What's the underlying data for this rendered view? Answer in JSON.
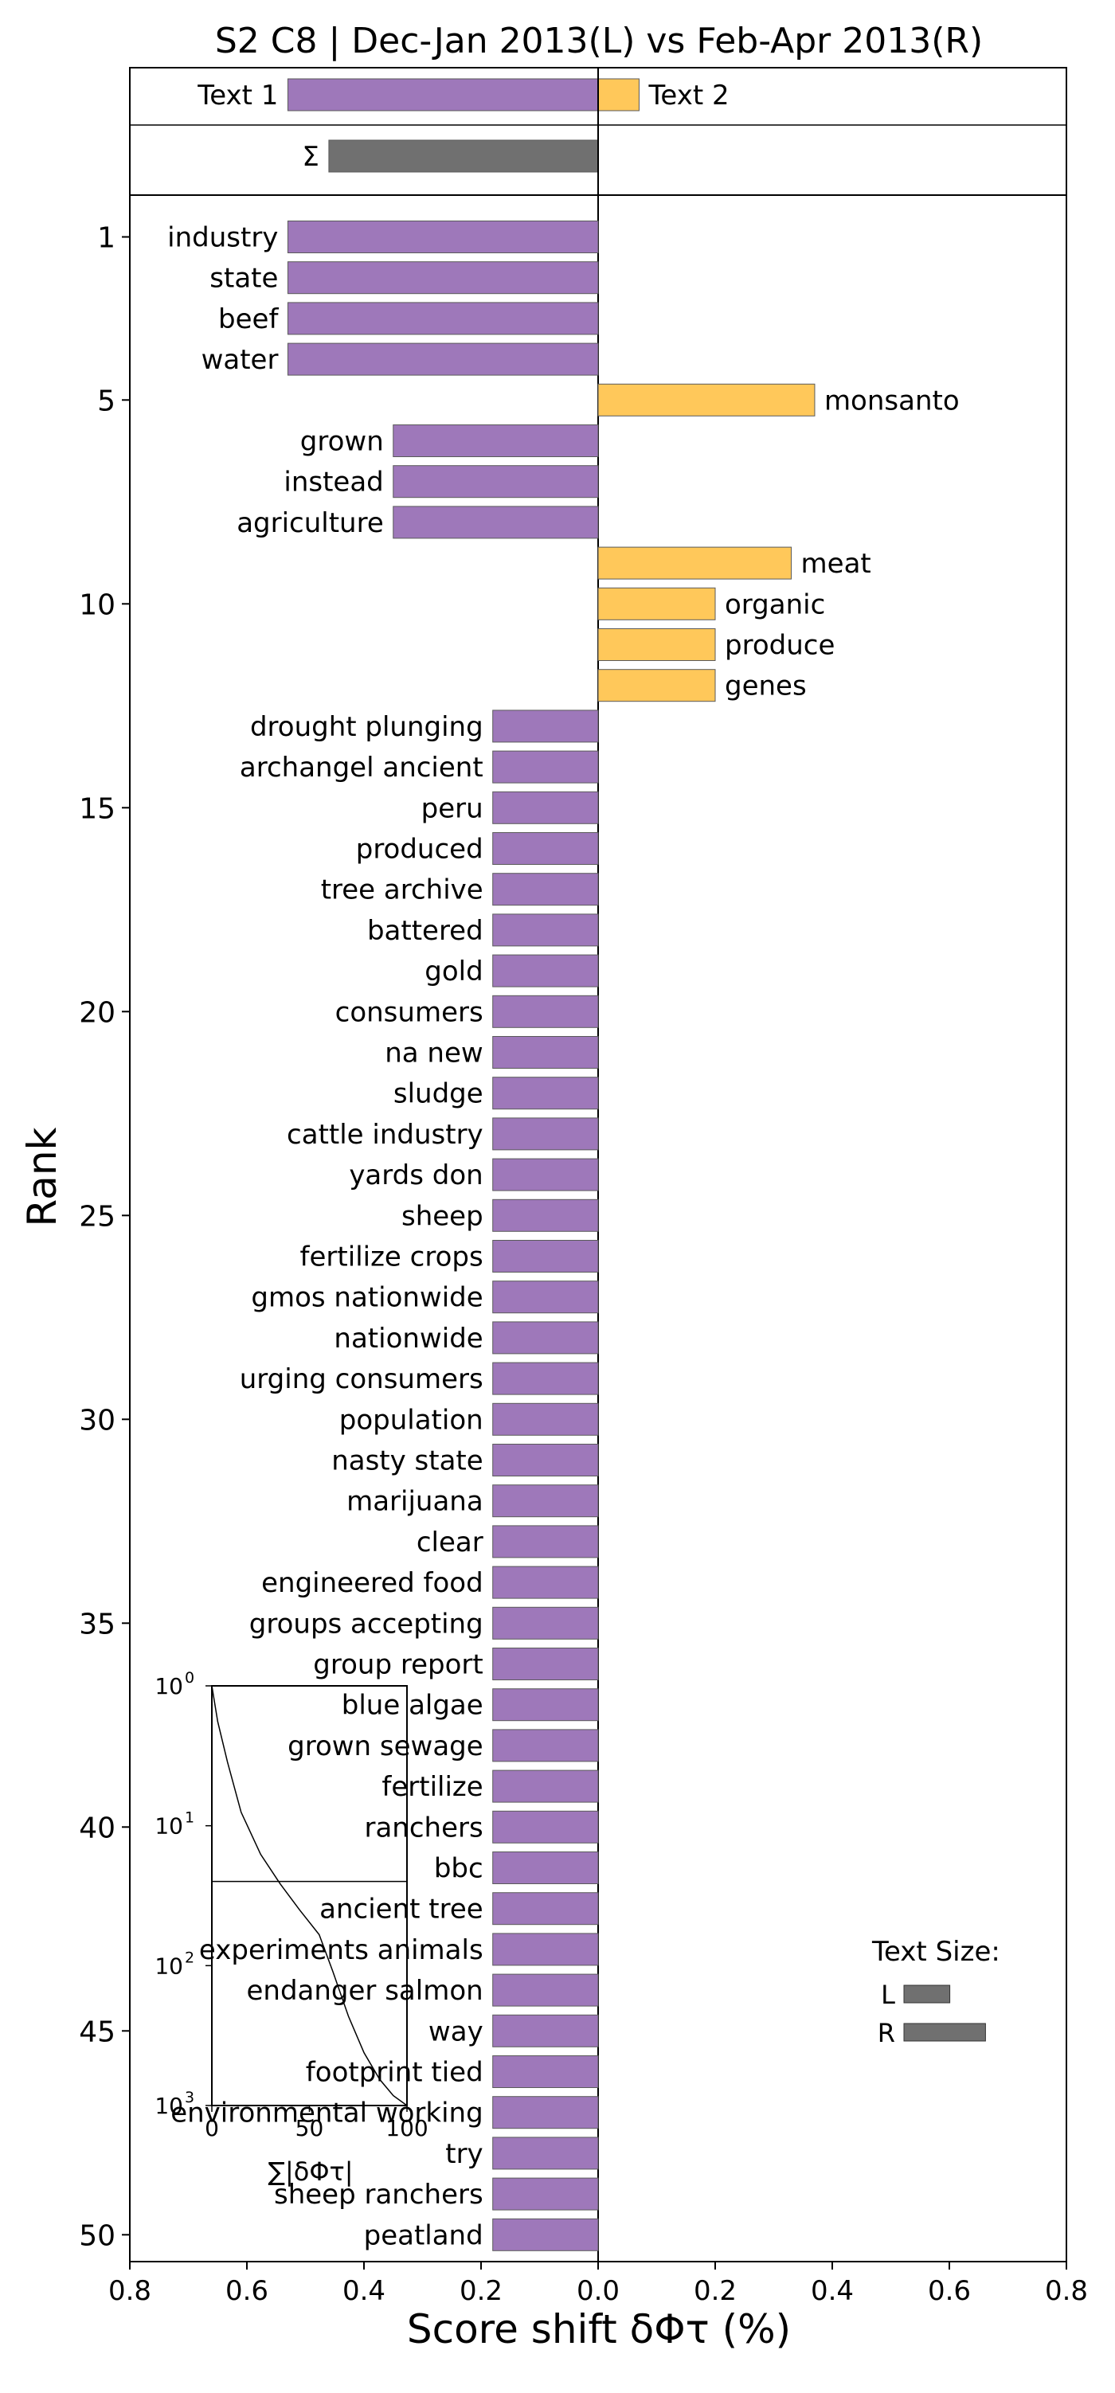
{
  "chart_data": {
    "type": "bar",
    "orientation": "horizontal",
    "title": "S2 C8 | Dec-Jan 2013(L) vs Feb-Apr 2013(R)",
    "xlabel": "Score shift δΦτ (%)",
    "ylabel": "Rank",
    "xlim": [
      -0.8,
      0.8
    ],
    "x_ticks": [
      "0.8",
      "0.6",
      "0.4",
      "0.2",
      "0.0",
      "0.2",
      "0.4",
      "0.6",
      "0.8"
    ],
    "y_ticks": [
      "1",
      "5",
      "10",
      "15",
      "20",
      "25",
      "30",
      "35",
      "40",
      "45",
      "50"
    ],
    "colors": {
      "left": "#9E78BA",
      "right": "#FFC85A",
      "sum": "#707070",
      "size": "#707070"
    },
    "summary": [
      {
        "label": "Text 1",
        "value": -0.53
      },
      {
        "label": "Text 2",
        "value": 0.07
      },
      {
        "label": "Σ",
        "value": -0.46
      }
    ],
    "words": [
      "industry",
      "state",
      "beef",
      "water",
      "monsanto",
      "grown",
      "instead",
      "agriculture",
      "meat",
      "organic",
      "produce",
      "genes",
      "drought plunging",
      "archangel ancient",
      "peru",
      "produced",
      "tree archive",
      "battered",
      "gold",
      "consumers",
      "na new",
      "sludge",
      "cattle industry",
      "yards don",
      "sheep",
      "fertilize crops",
      "gmos nationwide",
      "nationwide",
      "urging consumers",
      "population",
      "nasty state",
      "marijuana",
      "clear",
      "engineered food",
      "groups accepting",
      "group report",
      "blue algae",
      "grown sewage",
      "fertilize",
      "ranchers",
      "bbc",
      "ancient tree",
      "experiments animals",
      "endanger salmon",
      "way",
      "footprint tied",
      "environmental working",
      "try",
      "sheep ranchers",
      "peatland"
    ],
    "values": [
      -0.53,
      -0.53,
      -0.53,
      -0.53,
      0.37,
      -0.35,
      -0.35,
      -0.35,
      0.33,
      0.2,
      0.2,
      0.2,
      -0.18,
      -0.18,
      -0.18,
      -0.18,
      -0.18,
      -0.18,
      -0.18,
      -0.18,
      -0.18,
      -0.18,
      -0.18,
      -0.18,
      -0.18,
      -0.18,
      -0.18,
      -0.18,
      -0.18,
      -0.18,
      -0.18,
      -0.18,
      -0.18,
      -0.18,
      -0.18,
      -0.18,
      -0.18,
      -0.18,
      -0.18,
      -0.18,
      -0.18,
      -0.18,
      -0.18,
      -0.18,
      -0.18,
      -0.18,
      -0.18,
      -0.18,
      -0.18,
      -0.18
    ],
    "inset": {
      "xlabel": "∑|δΦτ|",
      "x_ticks": [
        "0",
        "50",
        "100"
      ],
      "y_ticks": [
        "10",
        "10",
        "10",
        "10"
      ],
      "y_tick_exponents": [
        "0",
        "1",
        "2",
        "3"
      ],
      "y_scale": "log",
      "curve": [
        [
          0,
          1
        ],
        [
          3,
          1.8
        ],
        [
          8,
          3.5
        ],
        [
          15,
          8
        ],
        [
          25,
          16
        ],
        [
          35,
          26
        ],
        [
          45,
          40
        ],
        [
          55,
          60
        ],
        [
          62,
          110
        ],
        [
          70,
          230
        ],
        [
          78,
          420
        ],
        [
          86,
          650
        ],
        [
          93,
          850
        ],
        [
          100,
          1000
        ]
      ],
      "marker_y": 25
    },
    "text_size": {
      "title": "Text Size:",
      "items": [
        {
          "label": "L",
          "value": 0.36
        },
        {
          "label": "R",
          "value": 0.64
        }
      ]
    }
  }
}
